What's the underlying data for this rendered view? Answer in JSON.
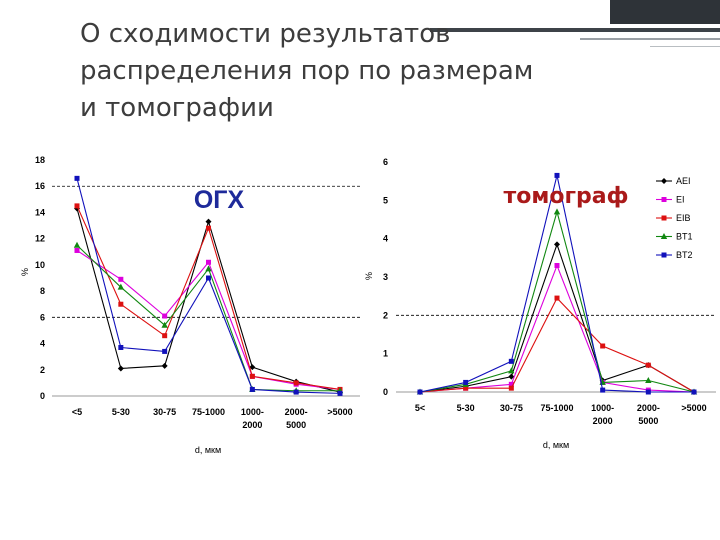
{
  "slide": {
    "title": "О сходимости результатов\nраспределения пор по размерам\nи томографии"
  },
  "chart_data": [
    {
      "type": "line",
      "annotation": "ОГХ",
      "annotation_color": "#1e2a9a",
      "categories": [
        "<5",
        "5-30",
        "30-75",
        "75-1000",
        "1000-\n2000",
        "2000-\n5000",
        ">5000"
      ],
      "xlabel": "d, мкм",
      "ylabel": "%",
      "ylim": [
        0,
        18
      ],
      "yticks": [
        0,
        2,
        4,
        6,
        8,
        10,
        12,
        14,
        16,
        18
      ],
      "ref_lines": [
        6,
        16
      ],
      "series": [
        {
          "color": "#000000",
          "marker": "diamond",
          "values": [
            14.3,
            2.1,
            2.3,
            13.3,
            2.2,
            1.1,
            0.3
          ]
        },
        {
          "color": "#dd00dd",
          "marker": "square",
          "values": [
            11.1,
            8.9,
            6.1,
            10.2,
            1.5,
            0.9,
            0.5
          ]
        },
        {
          "color": "#dd1111",
          "marker": "square",
          "values": [
            14.5,
            7.0,
            4.6,
            12.8,
            1.5,
            1.0,
            0.5
          ]
        },
        {
          "color": "#118811",
          "marker": "triangle",
          "values": [
            11.5,
            8.3,
            5.4,
            9.7,
            0.5,
            0.4,
            0.4
          ]
        },
        {
          "color": "#1111bb",
          "marker": "square",
          "values": [
            16.6,
            3.7,
            3.4,
            9.0,
            0.5,
            0.3,
            0.2
          ]
        }
      ]
    },
    {
      "type": "line",
      "annotation": "томограф",
      "annotation_color": "#aa1a1a",
      "categories": [
        "5<",
        "5-30",
        "30-75",
        "75-1000",
        "1000-\n2000",
        "2000-\n5000",
        ">5000"
      ],
      "xlabel": "d, мкм",
      "ylabel": "%",
      "ylim": [
        0,
        6
      ],
      "yticks": [
        0,
        1,
        2,
        3,
        4,
        5,
        6
      ],
      "ref_lines": [
        2
      ],
      "legend_position": "top-right",
      "series": [
        {
          "name": "AEI",
          "color": "#000000",
          "marker": "diamond",
          "values": [
            0.0,
            0.15,
            0.4,
            3.85,
            0.3,
            0.7,
            0.0
          ]
        },
        {
          "name": "EI",
          "color": "#dd00dd",
          "marker": "square",
          "values": [
            0.0,
            0.1,
            0.2,
            3.3,
            0.25,
            0.05,
            0.0
          ]
        },
        {
          "name": "EIB",
          "color": "#dd1111",
          "marker": "square",
          "values": [
            0.0,
            0.1,
            0.1,
            2.45,
            1.2,
            0.7,
            0.0
          ]
        },
        {
          "name": "BT1",
          "color": "#118811",
          "marker": "triangle",
          "values": [
            0.0,
            0.2,
            0.55,
            4.7,
            0.25,
            0.3,
            0.0
          ]
        },
        {
          "name": "BT2",
          "color": "#1111bb",
          "marker": "square",
          "values": [
            0.0,
            0.25,
            0.8,
            5.65,
            0.05,
            0.0,
            0.0
          ]
        }
      ]
    }
  ]
}
